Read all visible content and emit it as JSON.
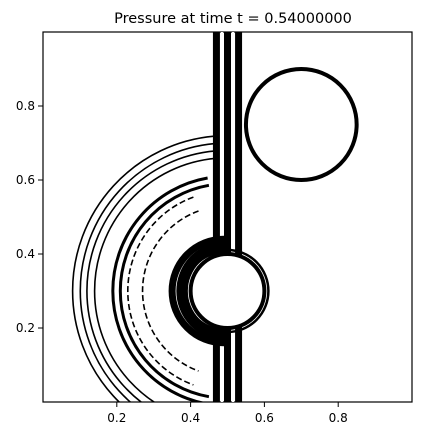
{
  "chart_data": {
    "type": "contour",
    "title": "Pressure at time t =     0.54000000",
    "xlabel": "",
    "ylabel": "",
    "xlim": [
      0.0,
      1.0
    ],
    "ylim": [
      0.0,
      1.0
    ],
    "xticks": [
      0.2,
      0.4,
      0.6,
      0.8
    ],
    "yticks": [
      0.2,
      0.4,
      0.6,
      0.8
    ],
    "xtick_labels": [
      "0.2",
      "0.4",
      "0.6",
      "0.8"
    ],
    "ytick_labels": [
      "0.2",
      "0.4",
      "0.6",
      "0.8"
    ],
    "grid": false,
    "line_color": "#000000",
    "objects": [
      {
        "name": "circle-body-left",
        "center": [
          0.5,
          0.3
        ],
        "radius": 0.1
      },
      {
        "name": "circle-body-right",
        "center": [
          0.7,
          0.75
        ],
        "radius": 0.15
      }
    ],
    "contours": {
      "vertical_front_x": [
        0.47,
        0.5,
        0.53
      ],
      "reflected_wave": {
        "center": [
          0.5,
          0.3
        ],
        "radii": [
          0.36,
          0.38,
          0.4,
          0.42
        ],
        "arc_deg": [
          95,
          265
        ]
      },
      "inner_ring": {
        "center": [
          0.5,
          0.3
        ],
        "radii": [
          0.29,
          0.31
        ],
        "arc_deg": [
          100,
          260
        ]
      },
      "negative_levels": {
        "center": [
          0.5,
          0.3
        ],
        "radii": [
          0.23,
          0.27
        ],
        "arc_deg": [
          110,
          250
        ]
      },
      "near_body_bands": {
        "center": [
          0.49,
          0.3
        ],
        "radii": [
          0.11,
          0.125,
          0.14
        ]
      }
    }
  }
}
